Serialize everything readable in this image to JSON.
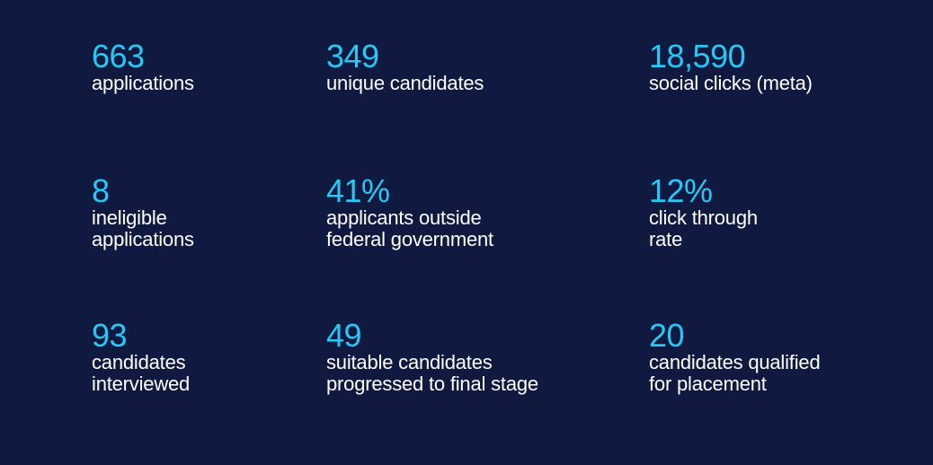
{
  "stats": [
    {
      "value": "663",
      "label": "applications"
    },
    {
      "value": "349",
      "label": "unique candidates"
    },
    {
      "value": "18,590",
      "label": " social clicks (meta)"
    },
    {
      "value": "8",
      "label": "ineligible\napplications"
    },
    {
      "value": "41%",
      "label": "applicants outside\nfederal government"
    },
    {
      "value": "12%",
      "label": "click through\nrate"
    },
    {
      "value": "93",
      "label": "candidates\ninterviewed"
    },
    {
      "value": "49",
      "label": "suitable candidates\nprogressed to final stage"
    },
    {
      "value": "20",
      "label": "candidates qualified\nfor placement"
    }
  ],
  "colors": {
    "background": "#101a40",
    "accent": "#28c8f5",
    "text": "#ffffff"
  }
}
